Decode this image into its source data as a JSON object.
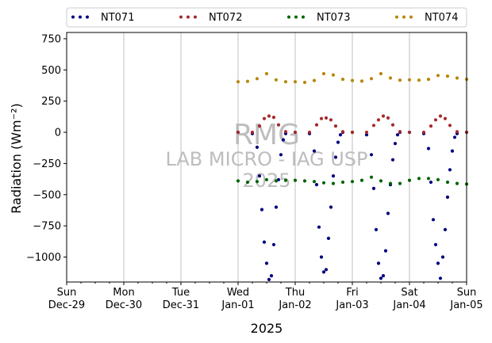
{
  "chart_data": {
    "type": "scatter",
    "ylabel": "Radiation",
    "ylabel_unit": "(Wm⁻²)",
    "xlabel": "2025",
    "ylim": [
      -1200,
      800
    ],
    "xlim": [
      "2024-12-29",
      "2025-01-05"
    ],
    "yticks": [
      750,
      500,
      250,
      0,
      -250,
      -500,
      -750,
      -1000
    ],
    "ytick_labels": [
      "750",
      "500",
      "250",
      "0",
      "−250",
      "−500",
      "−750",
      "−1000"
    ],
    "xticks": [
      {
        "date": "2024-12-29",
        "day": "Sun",
        "label": "Dec-29"
      },
      {
        "date": "2024-12-30",
        "day": "Mon",
        "label": "Dec-30"
      },
      {
        "date": "2024-12-31",
        "day": "Tue",
        "label": "Dec-31"
      },
      {
        "date": "2025-01-01",
        "day": "Wed",
        "label": "Jan-01"
      },
      {
        "date": "2025-01-02",
        "day": "Thu",
        "label": "Jan-02"
      },
      {
        "date": "2025-01-03",
        "day": "Fri",
        "label": "Jan-03"
      },
      {
        "date": "2025-01-04",
        "day": "Sat",
        "label": "Jan-04"
      },
      {
        "date": "2025-01-05",
        "day": "Sun",
        "label": "Jan-05"
      }
    ],
    "grid": "vertical",
    "legend_position": "top",
    "series": [
      {
        "name": "NT071",
        "color": "#00007f",
        "x": [
          "2025-01-01 00:00",
          "2025-01-01 06:00",
          "2025-01-01 08:00",
          "2025-01-01 09:00",
          "2025-01-01 10:00",
          "2025-01-01 11:00",
          "2025-01-01 12:00",
          "2025-01-01 13:00",
          "2025-01-01 14:00",
          "2025-01-01 15:00",
          "2025-01-01 16:00",
          "2025-01-01 17:00",
          "2025-01-01 18:00",
          "2025-01-01 19:00",
          "2025-01-01 20:00",
          "2025-01-02 00:00",
          "2025-01-02 06:00",
          "2025-01-02 08:00",
          "2025-01-02 09:00",
          "2025-01-02 10:00",
          "2025-01-02 11:00",
          "2025-01-02 12:00",
          "2025-01-02 13:00",
          "2025-01-02 14:00",
          "2025-01-02 15:00",
          "2025-01-02 16:00",
          "2025-01-02 17:00",
          "2025-01-02 18:00",
          "2025-01-02 19:00",
          "2025-01-02 20:00",
          "2025-01-03 00:00",
          "2025-01-03 06:00",
          "2025-01-03 08:00",
          "2025-01-03 09:00",
          "2025-01-03 10:00",
          "2025-01-03 11:00",
          "2025-01-03 12:00",
          "2025-01-03 13:00",
          "2025-01-03 14:00",
          "2025-01-03 15:00",
          "2025-01-03 16:00",
          "2025-01-03 17:00",
          "2025-01-03 18:00",
          "2025-01-03 19:00",
          "2025-01-03 20:00",
          "2025-01-04 00:00",
          "2025-01-04 06:00",
          "2025-01-04 08:00",
          "2025-01-04 09:00",
          "2025-01-04 10:00",
          "2025-01-04 11:00",
          "2025-01-04 12:00",
          "2025-01-04 13:00",
          "2025-01-04 14:00",
          "2025-01-04 15:00",
          "2025-01-04 16:00",
          "2025-01-04 17:00",
          "2025-01-04 18:00",
          "2025-01-04 19:00",
          "2025-01-04 20:00",
          "2025-01-05 00:00"
        ],
        "y": [
          0,
          -10,
          -120,
          -350,
          -620,
          -880,
          -1050,
          -1180,
          -1150,
          -900,
          -600,
          -380,
          -180,
          -60,
          -10,
          0,
          -10,
          -150,
          -420,
          -760,
          -1000,
          -1120,
          -1100,
          -850,
          -600,
          -350,
          -200,
          -80,
          -20,
          0,
          0,
          -20,
          -180,
          -450,
          -780,
          -1050,
          -1170,
          -1150,
          -950,
          -650,
          -420,
          -220,
          -90,
          -20,
          0,
          0,
          -10,
          -130,
          -400,
          -700,
          -900,
          -1050,
          -1170,
          -1000,
          -780,
          -520,
          -300,
          -150,
          -40,
          -10,
          0
        ]
      },
      {
        "name": "NT072",
        "color": "#a52a2a",
        "x": [
          "2025-01-01 00:00",
          "2025-01-01 06:00",
          "2025-01-01 09:00",
          "2025-01-01 11:00",
          "2025-01-01 13:00",
          "2025-01-01 15:00",
          "2025-01-01 17:00",
          "2025-01-01 20:00",
          "2025-01-02 00:00",
          "2025-01-02 06:00",
          "2025-01-02 09:00",
          "2025-01-02 11:00",
          "2025-01-02 13:00",
          "2025-01-02 15:00",
          "2025-01-02 17:00",
          "2025-01-02 20:00",
          "2025-01-03 00:00",
          "2025-01-03 06:00",
          "2025-01-03 09:00",
          "2025-01-03 11:00",
          "2025-01-03 13:00",
          "2025-01-03 15:00",
          "2025-01-03 17:00",
          "2025-01-03 20:00",
          "2025-01-04 00:00",
          "2025-01-04 06:00",
          "2025-01-04 09:00",
          "2025-01-04 11:00",
          "2025-01-04 13:00",
          "2025-01-04 15:00",
          "2025-01-04 17:00",
          "2025-01-04 20:00",
          "2025-01-05 00:00"
        ],
        "y": [
          0,
          0,
          50,
          110,
          130,
          120,
          60,
          5,
          0,
          0,
          60,
          110,
          115,
          100,
          50,
          5,
          0,
          0,
          55,
          100,
          130,
          115,
          60,
          5,
          0,
          0,
          50,
          100,
          130,
          110,
          55,
          5,
          0
        ]
      },
      {
        "name": "NT073",
        "color": "#006400",
        "x": [
          "2025-01-01 00:00",
          "2025-01-01 04:00",
          "2025-01-01 08:00",
          "2025-01-01 12:00",
          "2025-01-01 16:00",
          "2025-01-01 20:00",
          "2025-01-02 00:00",
          "2025-01-02 04:00",
          "2025-01-02 08:00",
          "2025-01-02 12:00",
          "2025-01-02 16:00",
          "2025-01-02 20:00",
          "2025-01-03 00:00",
          "2025-01-03 04:00",
          "2025-01-03 08:00",
          "2025-01-03 12:00",
          "2025-01-03 16:00",
          "2025-01-03 20:00",
          "2025-01-04 00:00",
          "2025-01-04 04:00",
          "2025-01-04 08:00",
          "2025-01-04 12:00",
          "2025-01-04 16:00",
          "2025-01-04 20:00",
          "2025-01-05 00:00"
        ],
        "y": [
          -390,
          -400,
          -395,
          -380,
          -390,
          -385,
          -385,
          -390,
          -395,
          -405,
          -410,
          -400,
          -395,
          -385,
          -360,
          -390,
          -410,
          -410,
          -385,
          -370,
          -370,
          -380,
          -400,
          -410,
          -415
        ]
      },
      {
        "name": "NT074",
        "color": "#b8860b",
        "x": [
          "2025-01-01 00:00",
          "2025-01-01 04:00",
          "2025-01-01 08:00",
          "2025-01-01 12:00",
          "2025-01-01 16:00",
          "2025-01-01 20:00",
          "2025-01-02 00:00",
          "2025-01-02 04:00",
          "2025-01-02 08:00",
          "2025-01-02 12:00",
          "2025-01-02 16:00",
          "2025-01-02 20:00",
          "2025-01-03 00:00",
          "2025-01-03 04:00",
          "2025-01-03 08:00",
          "2025-01-03 12:00",
          "2025-01-03 16:00",
          "2025-01-03 20:00",
          "2025-01-04 00:00",
          "2025-01-04 04:00",
          "2025-01-04 08:00",
          "2025-01-04 12:00",
          "2025-01-04 16:00",
          "2025-01-04 20:00",
          "2025-01-05 00:00"
        ],
        "y": [
          405,
          408,
          430,
          470,
          420,
          405,
          405,
          400,
          415,
          470,
          460,
          425,
          415,
          410,
          430,
          470,
          435,
          418,
          420,
          418,
          425,
          455,
          450,
          435,
          425
        ]
      }
    ]
  },
  "watermark": {
    "line1": "RMG",
    "line2": "LAB MICRO - IAG USP",
    "line3": "2025"
  }
}
